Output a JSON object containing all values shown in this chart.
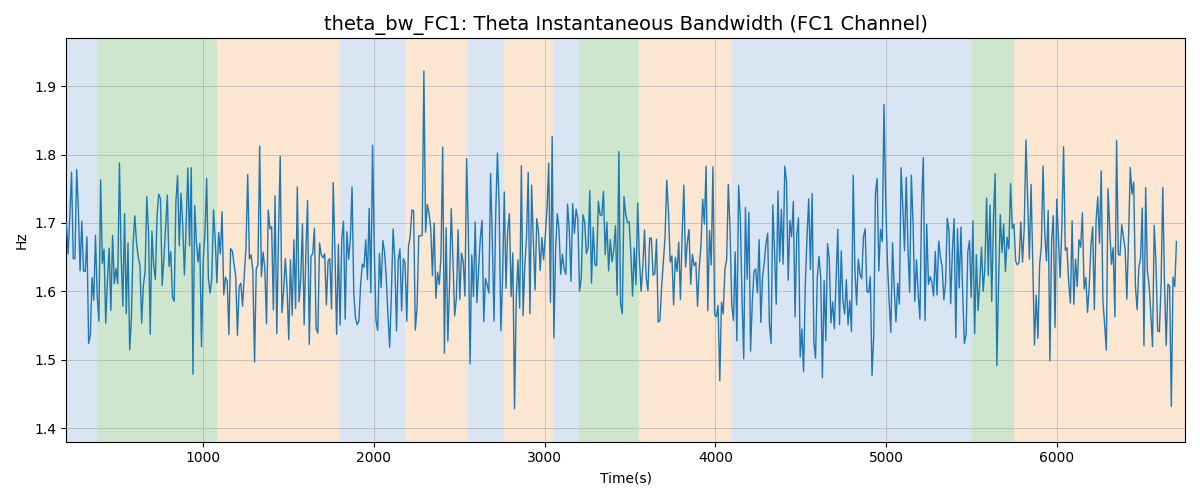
{
  "title": "theta_bw_FC1: Theta Instantaneous Bandwidth (FC1 Channel)",
  "xlabel": "Time(s)",
  "ylabel": "Hz",
  "xlim": [
    200,
    6750
  ],
  "ylim": [
    1.38,
    1.97
  ],
  "line_color": "#1f77b4",
  "line_width": 1.0,
  "background_color": "#ffffff",
  "bands": [
    {
      "xmin": 200,
      "xmax": 380,
      "color": "#aec6e8",
      "alpha": 0.45
    },
    {
      "xmin": 380,
      "xmax": 1080,
      "color": "#90c990",
      "alpha": 0.45
    },
    {
      "xmin": 1080,
      "xmax": 1800,
      "color": "#f5c99a",
      "alpha": 0.45
    },
    {
      "xmin": 1800,
      "xmax": 2180,
      "color": "#aec6e8",
      "alpha": 0.45
    },
    {
      "xmin": 2180,
      "xmax": 2550,
      "color": "#f5c99a",
      "alpha": 0.45
    },
    {
      "xmin": 2550,
      "xmax": 2760,
      "color": "#aec6e8",
      "alpha": 0.45
    },
    {
      "xmin": 2760,
      "xmax": 3050,
      "color": "#f5c99a",
      "alpha": 0.45
    },
    {
      "xmin": 3050,
      "xmax": 3200,
      "color": "#aec6e8",
      "alpha": 0.45
    },
    {
      "xmin": 3200,
      "xmax": 3550,
      "color": "#90c990",
      "alpha": 0.45
    },
    {
      "xmin": 3550,
      "xmax": 4100,
      "color": "#f5c99a",
      "alpha": 0.45
    },
    {
      "xmin": 4100,
      "xmax": 5500,
      "color": "#aec6e8",
      "alpha": 0.45
    },
    {
      "xmin": 5500,
      "xmax": 5750,
      "color": "#90c990",
      "alpha": 0.45
    },
    {
      "xmin": 5750,
      "xmax": 6750,
      "color": "#f5c99a",
      "alpha": 0.45
    }
  ],
  "seed": 42,
  "n_points": 650,
  "t_start": 200,
  "t_end": 6700,
  "base_value": 1.645,
  "noise_std": 0.072,
  "title_fontsize": 14
}
